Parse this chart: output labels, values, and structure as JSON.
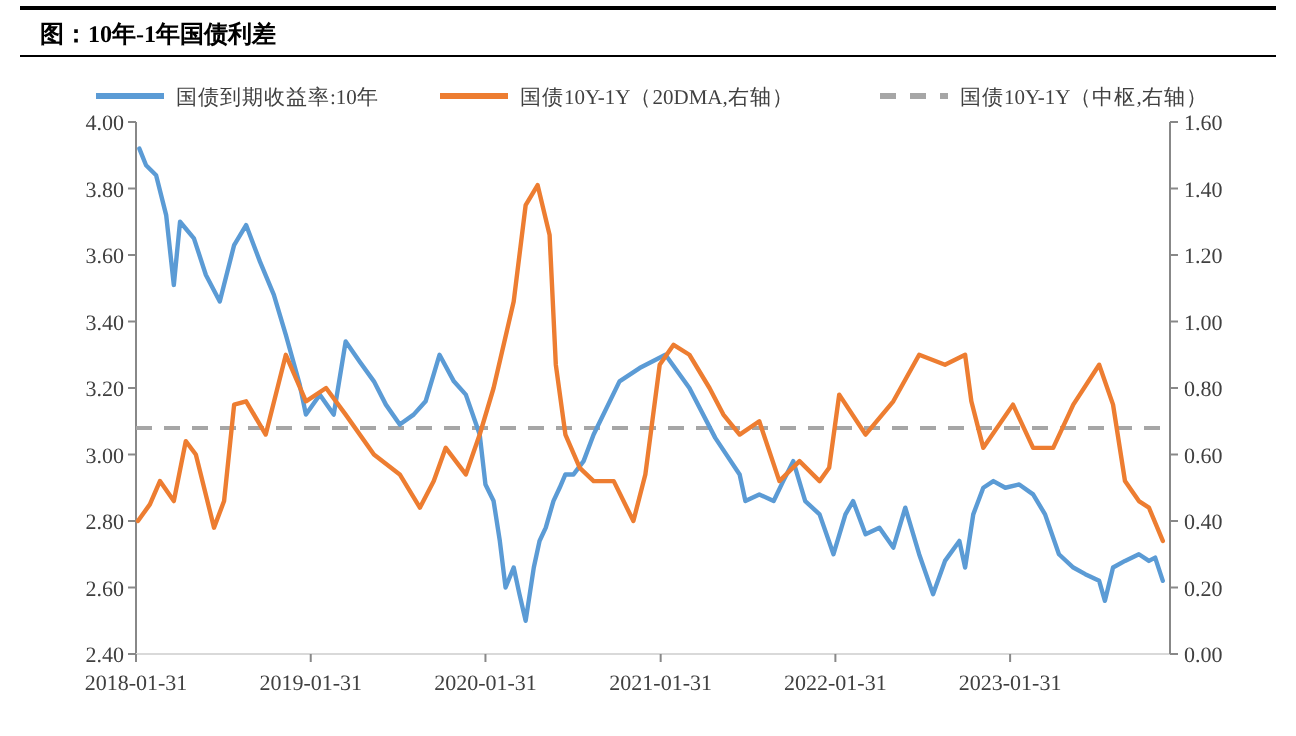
{
  "chart_data": {
    "type": "line",
    "title": "图：10年-1年国债利差",
    "xlim": [
      "2018-01-31",
      "2023-12-31"
    ],
    "xticks": [
      "2018-01-31",
      "2019-01-31",
      "2020-01-31",
      "2021-01-31",
      "2022-01-31",
      "2023-01-31"
    ],
    "ylim": [
      2.4,
      4.0
    ],
    "yticks": [
      {
        "value": 2.4,
        "label": "2.40"
      },
      {
        "value": 2.6,
        "label": "2.60"
      },
      {
        "value": 2.8,
        "label": "2.80"
      },
      {
        "value": 3.0,
        "label": "3.00"
      },
      {
        "value": 3.2,
        "label": "3.20"
      },
      {
        "value": 3.4,
        "label": "3.40"
      },
      {
        "value": 3.6,
        "label": "3.60"
      },
      {
        "value": 3.8,
        "label": "3.80"
      },
      {
        "value": 4.0,
        "label": "4.00"
      }
    ],
    "y2lim": [
      0,
      1.6
    ],
    "y2ticks": [
      {
        "value": 0,
        "label": "0.00"
      },
      {
        "value": 0.2,
        "label": "0.20"
      },
      {
        "value": 0.4,
        "label": "0.40"
      },
      {
        "value": 0.6,
        "label": "0.60"
      },
      {
        "value": 0.8,
        "label": "0.80"
      },
      {
        "value": 1.0,
        "label": "1.00"
      },
      {
        "value": 1.2,
        "label": "1.20"
      },
      {
        "value": 1.4,
        "label": "1.40"
      },
      {
        "value": 1.6,
        "label": "1.60"
      }
    ],
    "grid": false,
    "legend": "top",
    "marker": "none",
    "line_style": "solid",
    "series": [
      {
        "name": "国债到期收益率:10年",
        "color": "#5b9bd5",
        "x": [
          "2018-02-07",
          "2018-02-21",
          "2018-03-14",
          "2018-04-04",
          "2018-04-20",
          "2018-05-03",
          "2018-06-01",
          "2018-06-26",
          "2018-07-25",
          "2018-08-24",
          "2018-09-18",
          "2018-10-17",
          "2018-11-15",
          "2018-12-10",
          "2019-01-08",
          "2019-01-21",
          "2019-02-19",
          "2019-03-20",
          "2019-04-14",
          "2019-05-13",
          "2019-06-12",
          "2019-07-07",
          "2019-08-05",
          "2019-09-03",
          "2019-09-28",
          "2019-10-27",
          "2019-11-26",
          "2019-12-21",
          "2020-01-19",
          "2020-01-31",
          "2020-02-17",
          "2020-03-01",
          "2020-03-13",
          "2020-03-30",
          "2020-04-11",
          "2020-04-24",
          "2020-05-11",
          "2020-05-23",
          "2020-06-05",
          "2020-06-21",
          "2020-07-04",
          "2020-07-16",
          "2020-08-02",
          "2020-08-23",
          "2020-09-13",
          "2020-11-06",
          "2020-12-18",
          "2021-02-10",
          "2021-04-01",
          "2021-05-25",
          "2021-07-15",
          "2021-07-27",
          "2021-08-25",
          "2021-09-24",
          "2021-10-14",
          "2021-11-04",
          "2021-11-29",
          "2021-12-29",
          "2022-01-27",
          "2022-02-21",
          "2022-03-09",
          "2022-04-04",
          "2022-05-03",
          "2022-06-01",
          "2022-06-26",
          "2022-07-25",
          "2022-08-23",
          "2022-09-17",
          "2022-10-17",
          "2022-10-29",
          "2022-11-15",
          "2022-12-06",
          "2022-12-27",
          "2023-01-21",
          "2023-02-19",
          "2023-03-20",
          "2023-04-14",
          "2023-05-13",
          "2023-06-12",
          "2023-07-07",
          "2023-08-05",
          "2023-08-17",
          "2023-09-03",
          "2023-09-28",
          "2023-10-27",
          "2023-11-17",
          "2023-11-30",
          "2023-12-16"
        ],
        "values": [
          3.92,
          3.87,
          3.84,
          3.72,
          3.51,
          3.7,
          3.65,
          3.54,
          3.46,
          3.63,
          3.69,
          3.58,
          3.48,
          3.36,
          3.21,
          3.12,
          3.18,
          3.12,
          3.34,
          3.28,
          3.22,
          3.15,
          3.09,
          3.12,
          3.16,
          3.3,
          3.22,
          3.18,
          3.06,
          2.91,
          2.86,
          2.74,
          2.6,
          2.66,
          2.58,
          2.5,
          2.66,
          2.74,
          2.78,
          2.86,
          2.9,
          2.94,
          2.94,
          2.98,
          3.06,
          3.22,
          3.26,
          3.3,
          3.2,
          3.05,
          2.94,
          2.86,
          2.88,
          2.86,
          2.92,
          2.98,
          2.86,
          2.82,
          2.7,
          2.82,
          2.86,
          2.76,
          2.78,
          2.72,
          2.84,
          2.7,
          2.58,
          2.68,
          2.74,
          2.66,
          2.82,
          2.9,
          2.92,
          2.9,
          2.91,
          2.88,
          2.82,
          2.7,
          2.66,
          2.64,
          2.62,
          2.56,
          2.66,
          2.68,
          2.7,
          2.68,
          2.69,
          2.62
        ]
      },
      {
        "name": "国债10Y-1Y（20DMA,右轴）",
        "color": "#ed7d31",
        "axis": "y2",
        "x": [
          "2018-02-04",
          "2018-03-01",
          "2018-03-22",
          "2018-04-20",
          "2018-05-15",
          "2018-06-05",
          "2018-07-13",
          "2018-08-03",
          "2018-08-24",
          "2018-09-18",
          "2018-10-29",
          "2018-12-10",
          "2019-01-21",
          "2019-03-04",
          "2019-04-14",
          "2019-06-12",
          "2019-08-05",
          "2019-09-16",
          "2019-10-15",
          "2019-11-09",
          "2019-12-21",
          "2020-01-19",
          "2020-02-17",
          "2020-03-30",
          "2020-04-24",
          "2020-05-19",
          "2020-06-13",
          "2020-06-26",
          "2020-07-16",
          "2020-08-15",
          "2020-09-13",
          "2020-10-25",
          "2020-12-05",
          "2020-12-30",
          "2021-01-29",
          "2021-02-27",
          "2021-04-01",
          "2021-05-13",
          "2021-06-11",
          "2021-07-15",
          "2021-08-25",
          "2021-10-06",
          "2021-11-17",
          "2021-12-29",
          "2022-01-18",
          "2022-02-08",
          "2022-04-04",
          "2022-06-01",
          "2022-07-25",
          "2022-09-17",
          "2022-10-29",
          "2022-11-11",
          "2022-12-06",
          "2023-02-06",
          "2023-03-20",
          "2023-05-01",
          "2023-06-12",
          "2023-08-05",
          "2023-09-03",
          "2023-09-28",
          "2023-10-27",
          "2023-11-17",
          "2023-12-16"
        ],
        "values": [
          0.4,
          0.45,
          0.52,
          0.46,
          0.64,
          0.6,
          0.38,
          0.46,
          0.75,
          0.76,
          0.66,
          0.9,
          0.76,
          0.8,
          0.72,
          0.6,
          0.54,
          0.44,
          0.52,
          0.62,
          0.54,
          0.66,
          0.8,
          1.06,
          1.35,
          1.41,
          1.26,
          0.87,
          0.66,
          0.56,
          0.52,
          0.52,
          0.4,
          0.54,
          0.87,
          0.93,
          0.9,
          0.8,
          0.72,
          0.66,
          0.7,
          0.52,
          0.58,
          0.52,
          0.56,
          0.78,
          0.66,
          0.76,
          0.9,
          0.87,
          0.9,
          0.76,
          0.62,
          0.75,
          0.62,
          0.62,
          0.75,
          0.87,
          0.75,
          0.52,
          0.46,
          0.44,
          0.34
        ]
      }
    ],
    "ref_lines": [
      {
        "axis": "y2",
        "value": 0.68,
        "label": "国债10Y-1Y（中枢,右轴）",
        "color": "#a6a6a6",
        "line_style": "dashed"
      }
    ]
  }
}
